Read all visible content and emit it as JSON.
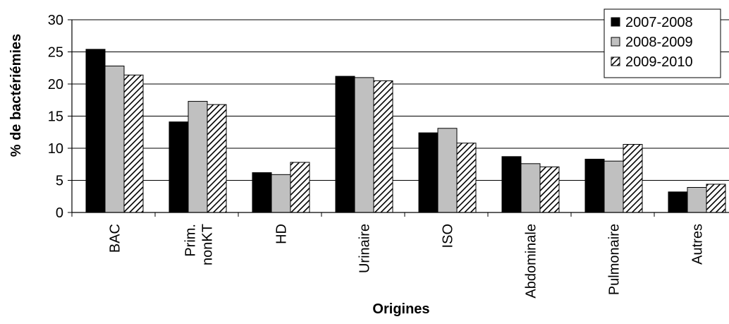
{
  "chart_data": {
    "type": "bar",
    "title": "",
    "xlabel": "Origines",
    "ylabel": "% de bactériémies",
    "ylim": [
      0,
      30
    ],
    "yticks": [
      0,
      5,
      10,
      15,
      20,
      25,
      30
    ],
    "grid": "horizontal",
    "legend_position": "top-right",
    "categories": [
      [
        "BAC"
      ],
      [
        "Prim.",
        "nonKT"
      ],
      [
        "HD"
      ],
      [
        "Urinaire"
      ],
      [
        "ISO"
      ],
      [
        "Abdominale"
      ],
      [
        "Pulmonaire"
      ],
      [
        "Autres"
      ]
    ],
    "series": [
      {
        "name": "2007-2008",
        "style": "solid-black",
        "values": [
          25.4,
          14.1,
          6.2,
          21.2,
          12.4,
          8.7,
          8.3,
          3.2
        ]
      },
      {
        "name": "2008-2009",
        "style": "solid-gray",
        "values": [
          22.8,
          17.3,
          5.9,
          21.0,
          13.1,
          7.6,
          8.0,
          3.9
        ]
      },
      {
        "name": "2009-2010",
        "style": "diagonal-hatch",
        "values": [
          21.4,
          16.8,
          7.8,
          20.5,
          10.8,
          7.1,
          10.6,
          4.4
        ]
      }
    ],
    "colors": {
      "solid-black": "#000000",
      "solid-gray": "#c0c0c0",
      "hatch-line": "#000000",
      "hatch-bg": "#ffffff"
    }
  }
}
